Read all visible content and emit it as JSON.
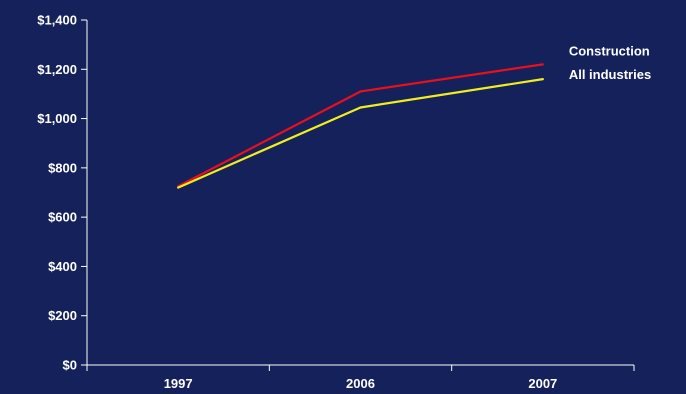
{
  "chart_data": {
    "type": "line",
    "categories": [
      "1997",
      "2006",
      "2007"
    ],
    "series": [
      {
        "name": "Construction",
        "values": [
          725,
          1110,
          1220
        ],
        "color": "#e8101c"
      },
      {
        "name": "All industries",
        "values": [
          720,
          1045,
          1160
        ],
        "color": "#f2ee1e"
      }
    ],
    "ylim": [
      0,
      1400
    ],
    "yticks": [
      0,
      200,
      400,
      600,
      800,
      1000,
      1200,
      1400
    ],
    "ytick_labels": [
      "$0",
      "$200",
      "$400",
      "$600",
      "$800",
      "$1,000",
      "$1,200",
      "$1,400"
    ],
    "title": "",
    "xlabel": "",
    "ylabel": "",
    "grid": false,
    "legend_placement": "right, at line ends",
    "background_color": "#14215a",
    "axis_color": "#ffffff",
    "text_color": "#ffffff"
  }
}
